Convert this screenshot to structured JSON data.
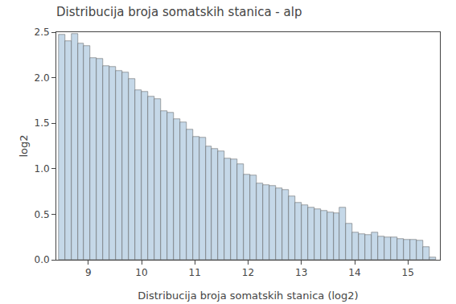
{
  "chart_data": {
    "type": "bar",
    "title": "Distribucija broja somatskih stanica - alp",
    "xlabel": "Distribucija broja somatskih stanica (log2)",
    "ylabel": "log2",
    "color": "#c5d8e8",
    "x": [
      8.5,
      8.62,
      8.74,
      8.86,
      8.98,
      9.1,
      9.22,
      9.34,
      9.46,
      9.58,
      9.7,
      9.82,
      9.94,
      10.06,
      10.18,
      10.3,
      10.42,
      10.54,
      10.66,
      10.78,
      10.9,
      11.02,
      11.14,
      11.26,
      11.38,
      11.5,
      11.62,
      11.74,
      11.86,
      11.98,
      12.1,
      12.22,
      12.34,
      12.46,
      12.58,
      12.7,
      12.82,
      12.94,
      13.06,
      13.18,
      13.3,
      13.42,
      13.54,
      13.66,
      13.78,
      13.9,
      14.02,
      14.14,
      14.26,
      14.38,
      14.5,
      14.62,
      14.74,
      14.86,
      14.98,
      15.1,
      15.22,
      15.34,
      15.46
    ],
    "values": [
      2.47,
      2.4,
      2.48,
      2.38,
      2.35,
      2.22,
      2.21,
      2.13,
      2.12,
      2.08,
      2.06,
      1.99,
      1.86,
      1.85,
      1.79,
      1.77,
      1.63,
      1.62,
      1.55,
      1.51,
      1.43,
      1.35,
      1.34,
      1.25,
      1.22,
      1.19,
      1.11,
      1.1,
      1.05,
      0.94,
      0.93,
      0.84,
      0.82,
      0.81,
      0.79,
      0.77,
      0.7,
      0.63,
      0.6,
      0.57,
      0.56,
      0.54,
      0.52,
      0.51,
      0.57,
      0.4,
      0.3,
      0.28,
      0.27,
      0.3,
      0.26,
      0.25,
      0.25,
      0.23,
      0.22,
      0.22,
      0.21,
      0.14,
      0.03
    ],
    "xlim": [
      8.4,
      15.6
    ],
    "xticks": [
      9,
      10,
      11,
      12,
      13,
      14,
      15
    ],
    "ylim": [
      0,
      2.5
    ],
    "yticks": [
      {
        "value": 0.0,
        "label": "0.0"
      },
      0.5,
      {
        "value": 1.0,
        "label": "1.0"
      },
      1.5,
      {
        "value": 2.0,
        "label": "2.0"
      },
      2.5
    ],
    "grid": false
  }
}
